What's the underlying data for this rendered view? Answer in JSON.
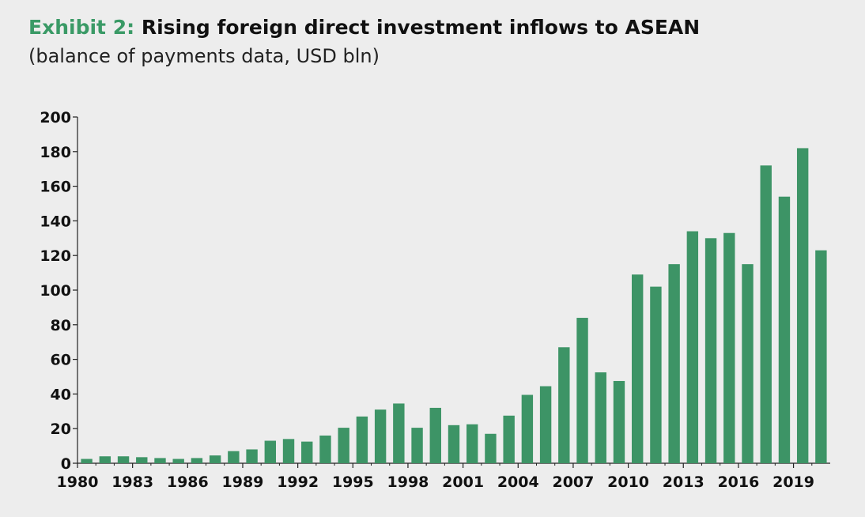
{
  "header": {
    "exhibit_label": "Exhibit 2:",
    "title": "Rising foreign direct investment inflows to ASEAN",
    "subtitle": "(balance of payments data, USD bln)"
  },
  "chart_data": {
    "type": "bar",
    "title": "Rising foreign direct investment inflows to ASEAN",
    "subtitle": "(balance of payments data, USD bln)",
    "xlabel": "",
    "ylabel": "",
    "ylim": [
      0,
      200
    ],
    "yticks": [
      0,
      20,
      40,
      60,
      80,
      100,
      120,
      140,
      160,
      180,
      200
    ],
    "xtick_labels": [
      "1980",
      "1983",
      "1986",
      "1989",
      "1992",
      "1995",
      "1998",
      "2001",
      "2004",
      "2007",
      "2010",
      "2013",
      "2016",
      "2019"
    ],
    "categories": [
      "1980",
      "1981",
      "1982",
      "1983",
      "1984",
      "1985",
      "1986",
      "1987",
      "1988",
      "1989",
      "1990",
      "1991",
      "1992",
      "1993",
      "1994",
      "1995",
      "1996",
      "1997",
      "1998",
      "1999",
      "2000",
      "2001",
      "2002",
      "2003",
      "2004",
      "2005",
      "2006",
      "2007",
      "2008",
      "2009",
      "2010",
      "2011",
      "2012",
      "2013",
      "2014",
      "2015",
      "2016",
      "2017",
      "2018",
      "2019",
      "2020"
    ],
    "values": [
      2.5,
      4,
      4,
      3.5,
      3,
      2.5,
      3,
      4.5,
      7,
      8,
      13,
      14,
      12.5,
      16,
      20.5,
      27,
      31,
      34.5,
      20.5,
      32,
      22,
      22.5,
      17,
      27.5,
      39.5,
      44.5,
      67,
      84,
      52.5,
      47.5,
      109,
      102,
      115,
      134,
      130,
      133,
      115,
      172,
      154,
      182,
      123
    ],
    "bar_color": "#3d9466",
    "grid": false,
    "legend": "none"
  }
}
